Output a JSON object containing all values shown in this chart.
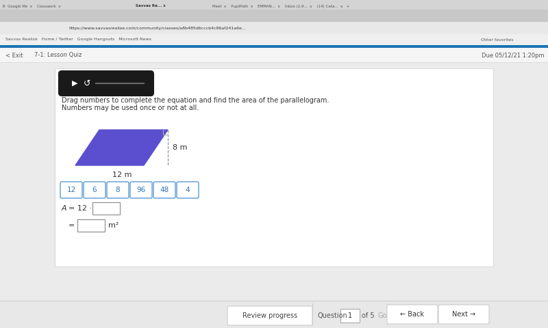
{
  "bg_outer": "#e8e8e8",
  "bg_inner": "#f0f0f0",
  "panel_color": "#ffffff",
  "browser_tab_bg": "#d4d4d4",
  "browser_tab_active": "#ffffff",
  "browser_addr_bg": "#ffffff",
  "nav_bg": "#f5f5f5",
  "nav_border": "#cccccc",
  "blue_stripe": "#1a73b5",
  "instruction_text": "Drag numbers to complete the equation and find the area of the parallelogram.",
  "instruction_text2": "Numbers may be used once or not at all.",
  "parallelogram_color": "#5b4fcf",
  "height_label": "8 m",
  "base_label": "12 m",
  "number_tiles": [
    "12",
    "6",
    "8",
    "96",
    "48",
    "4"
  ],
  "tile_border_color": "#5b9bd5",
  "tile_text_color": "#2e75b6",
  "footer_bg": "#e8e8e8",
  "footer_border": "#cccccc",
  "btn_blue": "#5b9bd5",
  "btn_text_white": "#ffffff",
  "go_color": "#aaaaaa",
  "text_dark": "#333333",
  "text_gray": "#666666"
}
